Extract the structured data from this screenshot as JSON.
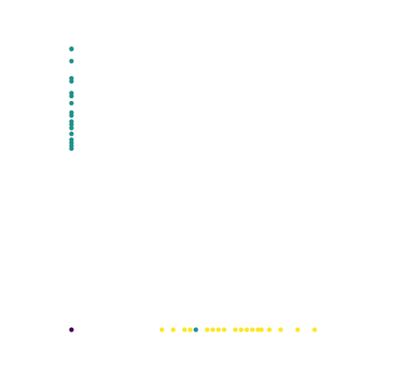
{
  "chart_data": {
    "type": "scatter",
    "axes_visible": false,
    "grid": false,
    "legend": "none",
    "xlim": [
      0,
      26
    ],
    "ylim": [
      0,
      26
    ],
    "series": [
      {
        "color": "#440154",
        "x": [
          0
        ],
        "y": [
          0
        ]
      },
      {
        "color": "#21918c",
        "x": [
          0,
          0,
          0,
          0,
          0,
          0,
          0,
          0,
          0,
          0,
          0,
          0,
          0,
          0,
          0,
          0,
          0,
          0,
          11
        ],
        "y": [
          25,
          24.97,
          23.9,
          22.37,
          22.1,
          21.05,
          20.79,
          20.16,
          19.32,
          19.06,
          18.53,
          18.27,
          17.95,
          17.43,
          16.91,
          16.64,
          16.38,
          16.12,
          0
        ]
      },
      {
        "color": "#fde725",
        "x": [
          8,
          9,
          10,
          10.5,
          12,
          12.5,
          13,
          13.5,
          14.5,
          15,
          15.5,
          16,
          16.5,
          16.8,
          17.5,
          18.5,
          20,
          21.5
        ],
        "y": [
          0,
          0,
          0,
          0,
          0,
          0,
          0,
          0,
          0,
          0,
          0,
          0,
          0,
          0,
          0,
          0,
          0,
          0
        ]
      }
    ]
  }
}
